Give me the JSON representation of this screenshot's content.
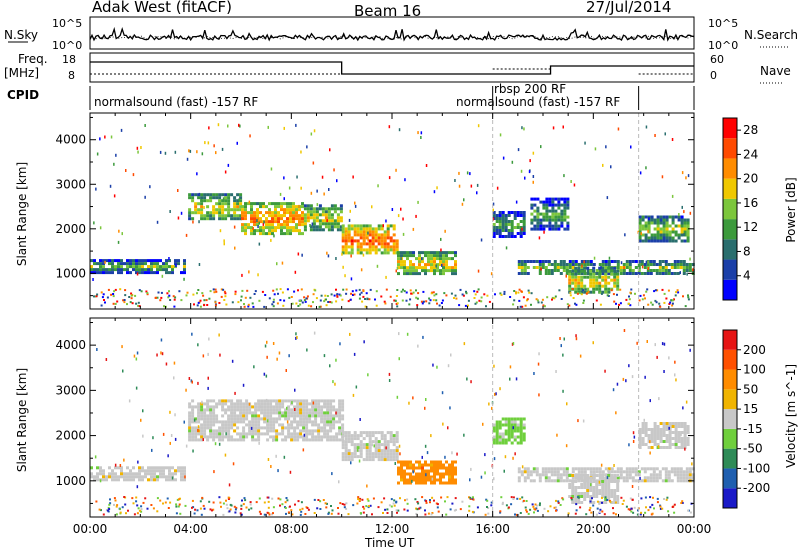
{
  "header": {
    "station": "Adak West (fitACF)",
    "beam": "Beam 16",
    "date": "27/Jul/2014"
  },
  "noise_panel": {
    "left_label": "N.Sky",
    "left_ticks": [
      "10^5",
      "10^0"
    ],
    "right_ticks": [
      "10^5",
      "10^0"
    ],
    "right_label": "N.Search"
  },
  "freq_panel": {
    "left_label_1": "Freq.",
    "left_label_2": "[MHz]",
    "left_ticks": [
      "18",
      "8"
    ],
    "right_ticks": [
      "60",
      "0"
    ],
    "right_label": "Nave"
  },
  "cpid_panel": {
    "label": "CPID",
    "modes": [
      {
        "name": "normalsound (fast) -157 RF",
        "start": "00:00",
        "end": "16:00"
      },
      {
        "name": "rbsp 200 RF",
        "start": "16:00",
        "end": "21:50"
      },
      {
        "name": "normalsound (fast) -157 RF",
        "start": "21:50",
        "end": "00:00"
      }
    ]
  },
  "colors": {
    "power_scale": [
      "#0000ff",
      "#1b3fa8",
      "#2a6e6e",
      "#3c9a3c",
      "#7cc63c",
      "#f0c800",
      "#ff8c00",
      "#ff4a00",
      "#ff0000"
    ],
    "velocity_scale": [
      "#1a1ac8",
      "#1f5fb0",
      "#2e8b57",
      "#6fcf3c",
      "#c8c8c8",
      "#f0b400",
      "#ff8c00",
      "#ff5000",
      "#e61414"
    ]
  },
  "chart_data": [
    {
      "type": "heatmap",
      "name": "power",
      "ylabel": "Slant Range [km]",
      "xlabel": "Time UT",
      "x_ticks": [
        "00:00",
        "04:00",
        "08:00",
        "12:00",
        "16:00",
        "20:00",
        "00:00"
      ],
      "y_ticks": [
        "1000",
        "2000",
        "3000",
        "4000"
      ],
      "ylim": [
        200,
        4600
      ],
      "colorbar_label": "Power [dB]",
      "colorbar_ticks": [
        "28",
        "24",
        "20",
        "16",
        "12",
        "8",
        "4"
      ],
      "colorbar_range": [
        0,
        30
      ],
      "echo_regions": [
        {
          "t0": 0.0,
          "t1": 3.7,
          "r_low": 1050,
          "r_high": 1320,
          "level": 0.3
        },
        {
          "t0": 3.9,
          "t1": 6.0,
          "r_low": 2200,
          "r_high": 2800,
          "level": 0.45
        },
        {
          "t0": 6.0,
          "t1": 8.5,
          "r_low": 1900,
          "r_high": 2600,
          "level": 0.6
        },
        {
          "t0": 8.5,
          "t1": 10.0,
          "r_low": 2000,
          "r_high": 2550,
          "level": 0.45
        },
        {
          "t0": 10.0,
          "t1": 12.2,
          "r_low": 1450,
          "r_high": 2100,
          "level": 0.65
        },
        {
          "t0": 12.2,
          "t1": 14.5,
          "r_low": 1000,
          "r_high": 1500,
          "level": 0.5
        },
        {
          "t0": 16.0,
          "t1": 17.2,
          "r_low": 1850,
          "r_high": 2400,
          "level": 0.25
        },
        {
          "t0": 17.5,
          "t1": 19.0,
          "r_low": 2000,
          "r_high": 2700,
          "level": 0.25
        },
        {
          "t0": 17.0,
          "t1": 24.0,
          "r_low": 1000,
          "r_high": 1300,
          "level": 0.35
        },
        {
          "t0": 19.0,
          "t1": 21.0,
          "r_low": 550,
          "r_high": 1150,
          "level": 0.45
        },
        {
          "t0": 21.8,
          "t1": 23.8,
          "r_low": 1750,
          "r_high": 2300,
          "level": 0.4
        }
      ]
    },
    {
      "type": "heatmap",
      "name": "velocity",
      "ylabel": "Slant Range [km]",
      "xlabel": "Time UT",
      "x_ticks": [
        "00:00",
        "04:00",
        "08:00",
        "12:00",
        "16:00",
        "20:00",
        "00:00"
      ],
      "y_ticks": [
        "1000",
        "2000",
        "3000",
        "4000"
      ],
      "ylim": [
        200,
        4600
      ],
      "colorbar_label": "Velocity [m s^-1]",
      "colorbar_ticks": [
        "200",
        "100",
        "50",
        "15",
        "-15",
        "-50",
        "-100",
        "-200"
      ],
      "colorbar_range": [
        -250,
        250
      ],
      "echo_regions": [
        {
          "t0": 0.0,
          "t1": 3.7,
          "r_low": 1050,
          "r_high": 1320,
          "level": 0.5
        },
        {
          "t0": 3.9,
          "t1": 10.0,
          "r_low": 1900,
          "r_high": 2800,
          "level": 0.5
        },
        {
          "t0": 10.0,
          "t1": 12.2,
          "r_low": 1450,
          "r_high": 2100,
          "level": 0.5
        },
        {
          "t0": 12.2,
          "t1": 14.5,
          "r_low": 950,
          "r_high": 1450,
          "level": 0.72
        },
        {
          "t0": 16.0,
          "t1": 17.2,
          "r_low": 1850,
          "r_high": 2400,
          "level": 0.4
        },
        {
          "t0": 17.0,
          "t1": 24.0,
          "r_low": 1000,
          "r_high": 1300,
          "level": 0.5
        },
        {
          "t0": 19.0,
          "t1": 21.0,
          "r_low": 550,
          "r_high": 1150,
          "level": 0.5
        },
        {
          "t0": 21.8,
          "t1": 23.8,
          "r_low": 1750,
          "r_high": 2300,
          "level": 0.5
        }
      ]
    }
  ]
}
